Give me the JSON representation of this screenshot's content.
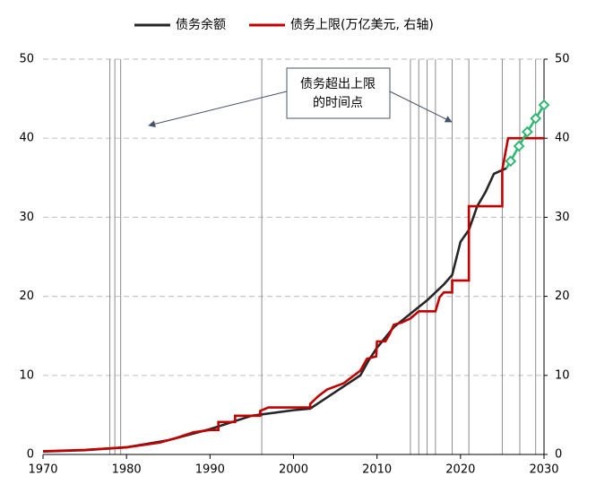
{
  "chart_data": {
    "type": "line",
    "xlim": [
      1970,
      2030
    ],
    "xticks": [
      1970,
      1980,
      1990,
      2000,
      2010,
      2020,
      2030
    ],
    "ylim": [
      0,
      50
    ],
    "yticks": [
      0,
      10,
      20,
      30,
      40,
      50
    ],
    "y2lim": [
      0,
      50
    ],
    "y2ticks": [
      0,
      10,
      20,
      30,
      40,
      50
    ],
    "grid": true,
    "legend": "top",
    "annotation": [
      "债务超出上限",
      "的时间点"
    ],
    "breach_years": [
      1978,
      1978.6,
      1979.3,
      1996.2,
      2014,
      2015,
      2016,
      2017,
      2019,
      2021,
      2025,
      2027.1,
      2029
    ],
    "breach_color": "#8c8c8c",
    "series": [
      {
        "name": "债务余额",
        "color": "#262626",
        "x": [
          1970,
          1975,
          1980,
          1985,
          1990,
          1995,
          2000,
          2002,
          2005,
          2008,
          2009,
          2010,
          2012,
          2014,
          2016,
          2018,
          2019,
          2020,
          2021,
          2022,
          2023,
          2024,
          2025.5
        ],
        "values": [
          0.38,
          0.54,
          0.91,
          1.8,
          3.2,
          4.9,
          5.6,
          5.8,
          7.9,
          10.0,
          11.9,
          13.5,
          16.1,
          17.8,
          19.5,
          21.5,
          22.7,
          26.9,
          28.4,
          31.4,
          33.2,
          35.5,
          36.2
        ]
      },
      {
        "name": "债务上限(万亿美元, 右轴)",
        "color": "#c00000",
        "axis": "y2",
        "x": [
          1970,
          1975,
          1980,
          1984,
          1986,
          1988,
          1990,
          1991,
          1991,
          1993,
          1993,
          1996,
          1996,
          1997,
          2002,
          2002,
          2003,
          2004,
          2006,
          2007,
          2008,
          2008.8,
          2009.9,
          2010,
          2011,
          2011.5,
          2012,
          2013,
          2014,
          2015,
          2017,
          2017.5,
          2018,
          2019,
          2019,
          2021,
          2021,
          2025,
          2025,
          2025.7,
          2030
        ],
        "values": [
          0.4,
          0.58,
          0.9,
          1.5,
          2.1,
          2.8,
          3.1,
          3.1,
          4.1,
          4.1,
          4.9,
          4.9,
          5.5,
          5.95,
          5.95,
          6.4,
          7.4,
          8.2,
          9.0,
          9.8,
          10.6,
          12.1,
          12.4,
          14.3,
          14.3,
          15.2,
          16.4,
          16.7,
          17.2,
          18.1,
          18.1,
          19.9,
          20.5,
          20.5,
          22.0,
          22.0,
          31.4,
          31.4,
          36.0,
          40.0,
          40.0
        ]
      },
      {
        "color": "#2eb872",
        "x": [
          2025.5,
          2026,
          2027,
          2028,
          2029,
          2030
        ],
        "values": [
          36.2,
          37.1,
          39.0,
          40.8,
          42.5,
          44.2
        ],
        "markers": "diamond"
      }
    ]
  }
}
